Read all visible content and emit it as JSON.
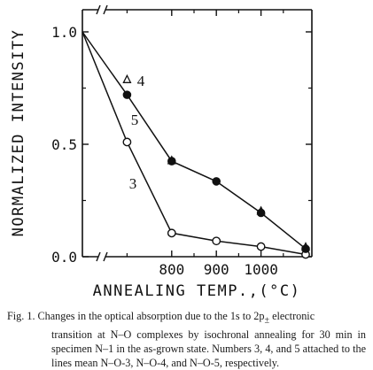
{
  "chart_data": {
    "type": "line",
    "xlabel": "ANNEALING TEMP.,(°C)",
    "ylabel": "NORMALIZED INTENSITY",
    "x_ticks": [
      "800",
      "900",
      "1000"
    ],
    "y_ticks": [
      "0.0",
      "0.5",
      "1.0"
    ],
    "xlim": [
      550,
      1120
    ],
    "ylim": [
      0,
      1.1
    ],
    "x_axis_break": true,
    "grid": false,
    "series": [
      {
        "name": "3",
        "marker": "open-circle",
        "x": [
          600,
          700,
          800,
          900,
          1000,
          1100
        ],
        "y": [
          1.0,
          0.51,
          0.105,
          0.07,
          0.045,
          0.01
        ]
      },
      {
        "name": "5",
        "marker": "filled-circle",
        "x": [
          600,
          700,
          800,
          900,
          1000,
          1100
        ],
        "y": [
          1.0,
          0.72,
          0.425,
          0.335,
          0.195,
          0.035
        ]
      },
      {
        "name": "4",
        "marker": "open-triangle",
        "x": [
          700,
          800,
          1000,
          1100
        ],
        "y": [
          0.79,
          0.43,
          0.205,
          0.045
        ]
      }
    ]
  },
  "caption": {
    "lead": "Fig. 1.   Changes in the optical absorption due to the 1s to 2p",
    "pm": "±",
    "line1_tail": " electronic",
    "rest": "transition at N–O complexes by isochronal annealing for 30 min in specimen N–1 in the as-grown state. Numbers 3, 4, and 5 attached to the lines mean N–O-3, N–O-4, and N–O-5, respectively."
  }
}
